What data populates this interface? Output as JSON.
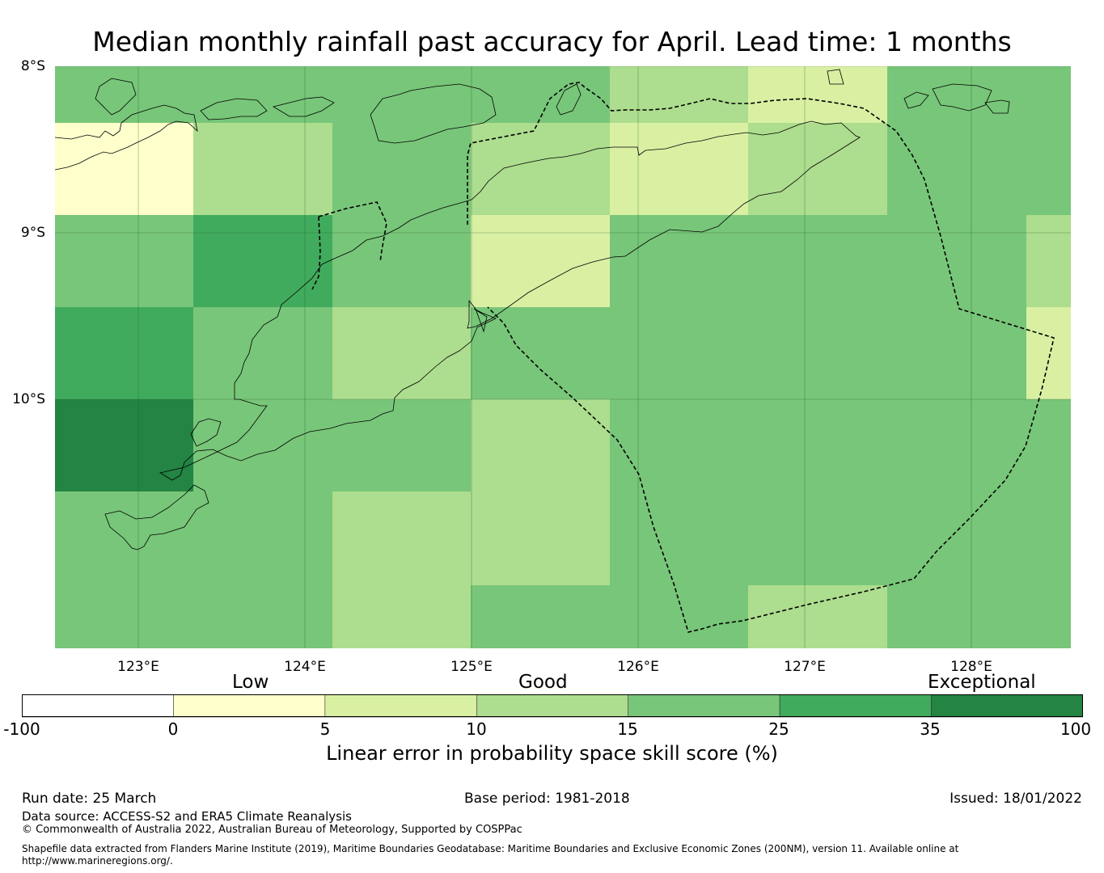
{
  "title": "Median monthly rainfall past accuracy for April. Lead time: 1 months",
  "map": {
    "lat_labels": [
      "8°S",
      "9°S",
      "10°S"
    ],
    "lon_labels": [
      "123°E",
      "124°E",
      "125°E",
      "126°E",
      "127°E",
      "128°E"
    ],
    "extent": {
      "lon_min": 122.5,
      "lon_max": 128.6,
      "lat_top": -7.95,
      "lat_bottom": -11.45
    },
    "grid_colors_by_category": {
      "0-5": "#ffffcc",
      "5-10": "#d9f0a3",
      "10-15": "#addd8e",
      "15-25": "#78c679",
      "25-35": "#41ab5d",
      "35-100": "#238443"
    },
    "skill_grid_category_rows": [
      [
        "15-25",
        "15-25",
        "15-25",
        "15-25",
        "10-15",
        "5-10",
        "15-25",
        "15-25"
      ],
      [
        "0-5",
        "10-15",
        "15-25",
        "10-15",
        "5-10",
        "10-15",
        "15-25",
        "15-25"
      ],
      [
        "15-25",
        "25-35",
        "15-25",
        "5-10",
        "15-25",
        "15-25",
        "15-25",
        "10-15"
      ],
      [
        "25-35",
        "15-25",
        "10-15",
        "15-25",
        "15-25",
        "15-25",
        "15-25",
        "5-10"
      ],
      [
        "35-100",
        "15-25",
        "15-25",
        "10-15",
        "15-25",
        "15-25",
        "15-25",
        "15-25"
      ],
      [
        "15-25",
        "15-25",
        "10-15",
        "10-15",
        "15-25",
        "15-25",
        "15-25",
        "15-25"
      ],
      [
        "15-25",
        "15-25",
        "10-15",
        "15-25",
        "15-25",
        "10-15",
        "15-25",
        "15-25"
      ]
    ]
  },
  "colorbar": {
    "categories": [
      "Low",
      "Good",
      "Exceptional"
    ],
    "ticks": [
      "-100",
      "0",
      "5",
      "10",
      "15",
      "25",
      "35",
      "100"
    ],
    "colors": [
      "#ffffff",
      "#ffffcc",
      "#d9f0a3",
      "#addd8e",
      "#78c679",
      "#41ab5d",
      "#238443"
    ],
    "label": "Linear error in probability space skill score (%)"
  },
  "footer": {
    "run_date": "Run date: 25 March",
    "base_period": "Base period: 1981-2018",
    "issued": "Issued: 18/01/2022",
    "data_source": "Data source: ACCESS-S2 and ERA5 Climate Reanalysis",
    "copyright": "© Commonwealth of Australia 2022, Australian Bureau of Meteorology, Supported by COSPPac",
    "shapefile_note": "Shapefile data extracted from Flanders Marine Institute (2019), Maritime Boundaries Geodatabase: Maritime Boundaries and Exclusive Economic Zones (200NM), version 11. Available online at http://www.marineregions.org/."
  }
}
